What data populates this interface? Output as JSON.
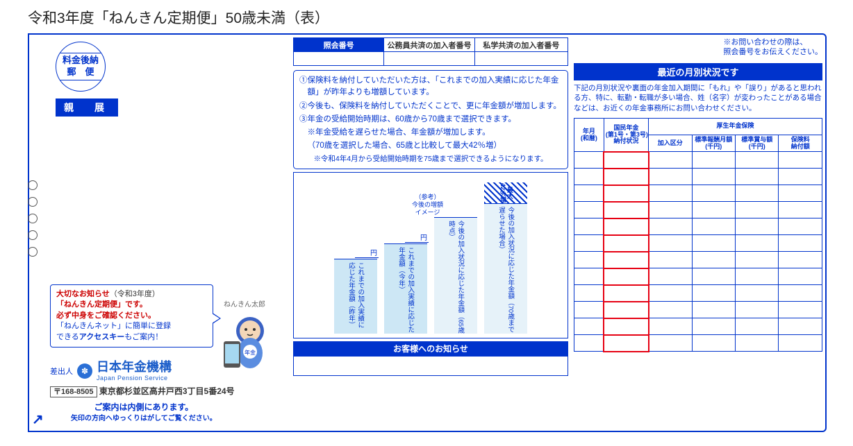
{
  "page_title": "令和3年度「ねんきん定期便」50歳未満（表）",
  "stamp": {
    "line1": "料金後納",
    "line2": "郵　便"
  },
  "shinten": "親　展",
  "speech": {
    "l1a": "大切なお知らせ",
    "l1b": "（令和3年度）",
    "l2": "「ねんきん定期便」です。",
    "l3": "必ず中身をご確認ください。",
    "l4a": "「ねんきんネット」に簡単に登録",
    "l4b": "できる",
    "l4c": "アクセスキー",
    "l4d": "もご案内！"
  },
  "mascot_name": "ねんきん太郎",
  "mascot_tag": "年金",
  "sender_label": "差出人",
  "org_jp": "日本年金機構",
  "org_en": "Japan Pension Service",
  "zip": "〒168-8505",
  "street": "東京都杉並区高井戸西3丁目5番24号",
  "footer1": "ご案内は内側にあります。",
  "footer2": "矢印の方向へゆっくりはがしてご覧ください。",
  "hdr": {
    "c1": "照会番号",
    "c2": "公務員共済の加入者番号",
    "c3": "私学共済の加入者番号"
  },
  "inq_note1": "※お問い合わせの際は、",
  "inq_note2": "照会番号をお伝えください。",
  "info": {
    "i1": "①保険料を納付していただいた方は、「これまでの加入実績に応じた年金額」が昨年よりも増額しています。",
    "i2": "②今後も、保険料を納付していただくことで、更に年金額が増加します。",
    "i3": "③年金の受給開始時期は、60歳から70歳まで選択できます。",
    "i3a": "※年金受給を遅らせた場合、年金額が増加します。",
    "i3b": "（70歳を選択した場合、65歳と比較して最大42％増）",
    "note": "※令和4年4月から受給開始時期を75歳まで選択できるようになります。"
  },
  "chart": {
    "ref": "（参考）\n今後の増額\nイメージ",
    "yen": "円",
    "cap": "最大42％増",
    "bars": [
      {
        "h": 108,
        "light": false,
        "label": "これまでの加入実績に応じた年金額（昨年）",
        "yen": true
      },
      {
        "h": 130,
        "light": false,
        "label": "これまでの加入実績に応じた年金額（今年）",
        "yen": true
      },
      {
        "h": 168,
        "light": true,
        "label": "今後の加入状況に応じた年金額（65歳時点）",
        "yen": false
      },
      {
        "h": 188,
        "light": true,
        "label": "今後の加入状況に応じた年金額（70歳まで遅らせた場合）",
        "yen": false,
        "cap": true
      }
    ]
  },
  "notice_bar": "お客様へのお知らせ",
  "status_title": "最近の月別状況です",
  "status_desc": "下記の月別状況や裏面の年金加入期間に「もれ」や「誤り」があると思われる方、特に、転勤・転職が多い場合、姓（名字）が変わったことがある場合などは、お近くの年金事務所にお問い合わせください。",
  "grid": {
    "col_ym": "年月\n(和暦)",
    "col_nk": "国民年金\n(第1号・第3号)\n納付状況",
    "col_group": "厚生年金保険",
    "sub1": "加入区分",
    "sub2": "標準報酬月額\n(千円)",
    "sub3": "標準賞与額\n(千円)",
    "sub4": "保険料\n納付額",
    "rows": 12
  },
  "type": "document",
  "colors": {
    "primary": "#0033cc",
    "accent_red": "#e60012",
    "bar_fill": "#cde7f5",
    "bar_fill_light": "#e6f2f9",
    "background": "#ffffff",
    "text": "#333333"
  }
}
